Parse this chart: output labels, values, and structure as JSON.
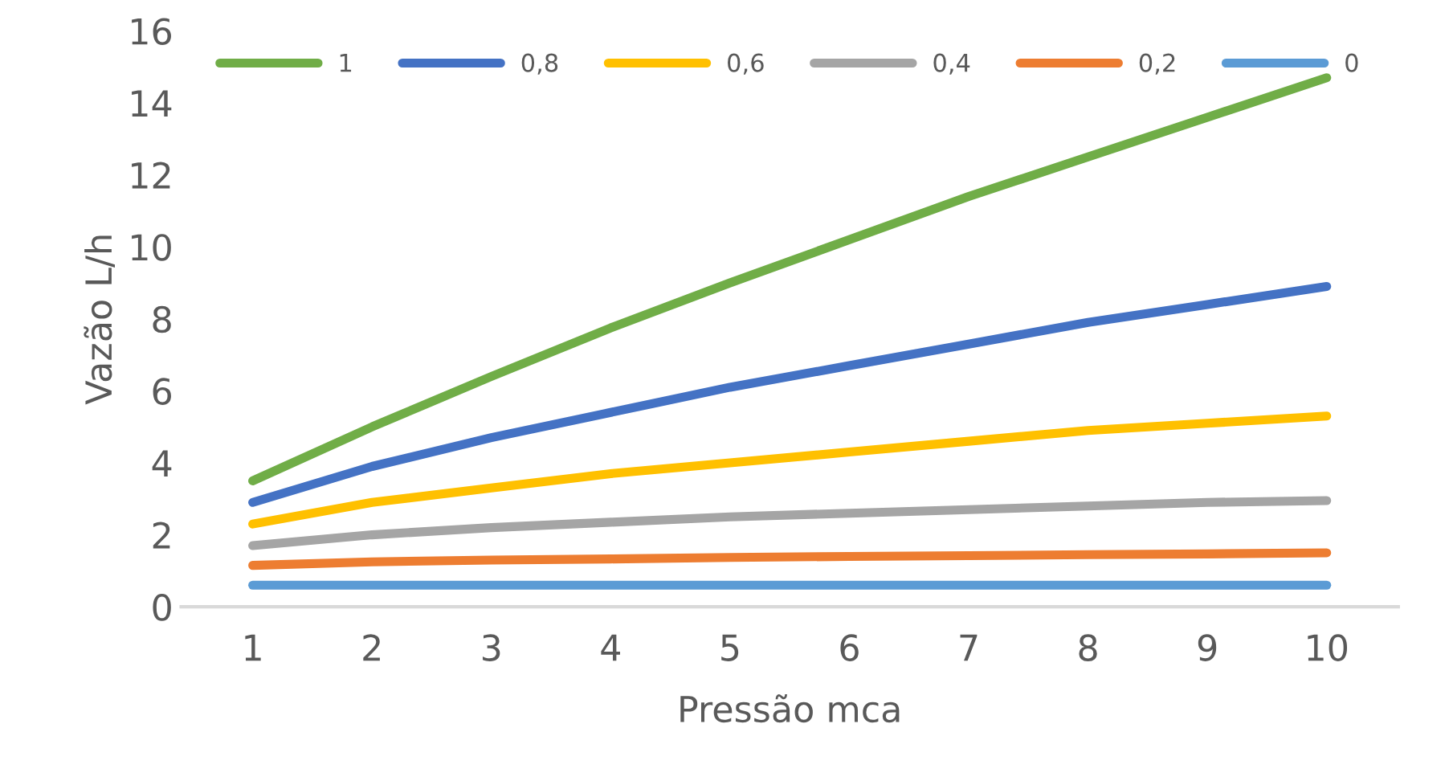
{
  "chart_data": {
    "type": "line",
    "xlabel": "Pressão mca",
    "ylabel": "Vazão L/h",
    "categories": [
      "1",
      "2",
      "3",
      "4",
      "5",
      "6",
      "7",
      "8",
      "9",
      "10"
    ],
    "series": [
      {
        "name": "1",
        "color": "#70ad47",
        "values": [
          3.5,
          5.0,
          6.4,
          7.75,
          9.0,
          10.2,
          11.4,
          12.5,
          13.6,
          14.7
        ]
      },
      {
        "name": "0,8",
        "color": "#4472c4",
        "values": [
          2.9,
          3.9,
          4.7,
          5.4,
          6.1,
          6.7,
          7.3,
          7.9,
          8.4,
          8.9
        ]
      },
      {
        "name": "0,6",
        "color": "#ffc000",
        "values": [
          2.3,
          2.9,
          3.3,
          3.7,
          4.0,
          4.3,
          4.6,
          4.9,
          5.1,
          5.3
        ]
      },
      {
        "name": "0,4",
        "color": "#a5a5a5",
        "values": [
          1.7,
          2.0,
          2.2,
          2.35,
          2.5,
          2.6,
          2.7,
          2.8,
          2.9,
          2.95
        ]
      },
      {
        "name": "0,2",
        "color": "#ed7d31",
        "values": [
          1.15,
          1.25,
          1.3,
          1.33,
          1.37,
          1.4,
          1.42,
          1.45,
          1.47,
          1.5
        ]
      },
      {
        "name": "0",
        "color": "#5b9bd5",
        "values": [
          0.6,
          0.6,
          0.6,
          0.6,
          0.6,
          0.6,
          0.6,
          0.6,
          0.6,
          0.6
        ]
      }
    ],
    "ylim": [
      0,
      16
    ],
    "yticks": [
      0,
      2,
      4,
      6,
      8,
      10,
      12,
      14,
      16
    ],
    "grid": false,
    "legend": "top",
    "marker": "none",
    "line_style": "solid"
  }
}
